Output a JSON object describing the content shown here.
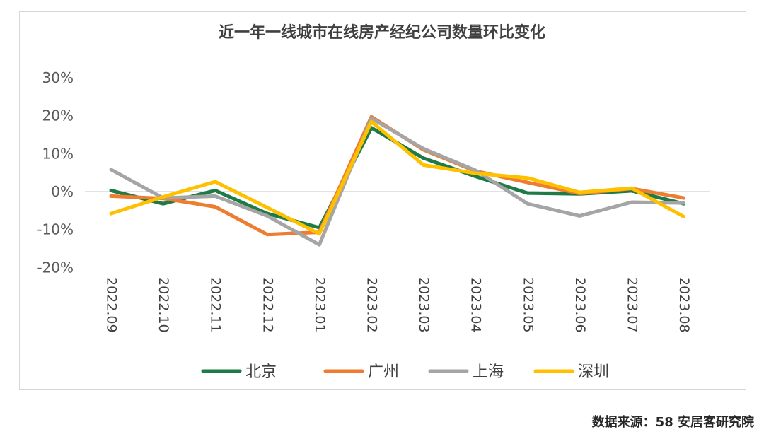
{
  "chart_data": {
    "type": "line",
    "title": "近一年一线城市在线房产经纪公司数量环比变化",
    "x": [
      "2022.09",
      "2022.10",
      "2022.11",
      "2022.12",
      "2023.01",
      "2023.02",
      "2023.03",
      "2023.04",
      "2023.05",
      "2023.06",
      "2023.07",
      "2023.08"
    ],
    "ylim": [
      -20,
      30
    ],
    "yticks": [
      30,
      20,
      10,
      0,
      -10,
      -20
    ],
    "ytick_labels": [
      "30%",
      "20%",
      "10%",
      "0%",
      "-10%",
      "-20%"
    ],
    "grid": false,
    "zero_line": true,
    "legend_position": "bottom",
    "series": [
      {
        "name": "北京",
        "color": "#1e7a46",
        "values": [
          0.3,
          -3.2,
          0.3,
          -5.8,
          -9.5,
          16.8,
          8.8,
          4.0,
          -0.4,
          -0.6,
          0.2,
          -3.2
        ]
      },
      {
        "name": "广州",
        "color": "#ed7d31",
        "values": [
          -1.2,
          -1.8,
          -4.0,
          -11.3,
          -10.7,
          19.7,
          11.0,
          5.4,
          2.4,
          -0.5,
          0.8,
          -1.7
        ]
      },
      {
        "name": "上海",
        "color": "#a5a5a5",
        "values": [
          5.8,
          -1.7,
          -1.2,
          -6.4,
          -14.0,
          19.3,
          11.3,
          5.6,
          -3.2,
          -6.4,
          -2.8,
          -3.0
        ]
      },
      {
        "name": "深圳",
        "color": "#ffc000",
        "values": [
          -5.8,
          -1.4,
          2.6,
          -4.2,
          -11.1,
          18.4,
          7.0,
          4.8,
          3.6,
          -0.2,
          0.9,
          -6.6
        ]
      }
    ]
  },
  "source_note": "数据来源：58 安居客研究院"
}
